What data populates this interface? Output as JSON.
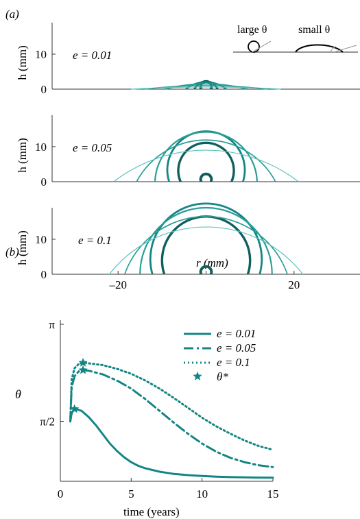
{
  "colors": {
    "teal_dark": "#0f5f5f",
    "teal": "#148585",
    "teal_mid": "#2a9d97",
    "teal_light": "#5cc4bf",
    "axis": "#333333",
    "inset_drop": "#000000",
    "inset_guide": "#999999"
  },
  "panel_a": {
    "label": "(a)",
    "inset": {
      "large_label": "large θ",
      "small_label": "small θ"
    }
  },
  "panel_b": {
    "label": "(b)"
  },
  "chart_data": [
    {
      "type": "line",
      "panel": "a-top",
      "ylabel": "h (mm)",
      "annotation": "e = 0.01",
      "ylim": [
        0,
        19
      ],
      "yticks": [
        0,
        10
      ],
      "xlim": [
        -35,
        35
      ],
      "series": [
        {
          "R": 1.1,
          "h": 2.2,
          "stroke": 4.0
        },
        {
          "R": 2.6,
          "h": 2.2,
          "stroke": 3.0
        },
        {
          "R": 4.6,
          "h": 2.0,
          "stroke": 2.5
        },
        {
          "R": 9.4,
          "h": 1.5,
          "stroke": 2.0
        },
        {
          "R": 14.0,
          "h": 1.0,
          "stroke": 1.6
        },
        {
          "R": 17.0,
          "h": 0.6,
          "stroke": 1.2
        }
      ]
    },
    {
      "type": "line",
      "panel": "a-middle",
      "ylabel": "h (mm)",
      "annotation": "e = 0.05",
      "ylim": [
        0,
        19
      ],
      "yticks": [
        0,
        10
      ],
      "xlim": [
        -35,
        35
      ],
      "series": [
        {
          "R": 1.1,
          "h": 2.2,
          "stroke": 4.0
        },
        {
          "R": 5.8,
          "h": 11.1,
          "stroke": 3.4
        },
        {
          "R": 8.4,
          "h": 14.4,
          "stroke": 2.8
        },
        {
          "R": 11.6,
          "h": 14.2,
          "stroke": 2.2
        },
        {
          "R": 15.8,
          "h": 11.9,
          "stroke": 1.7
        },
        {
          "R": 21.0,
          "h": 9.0,
          "stroke": 1.2
        }
      ]
    },
    {
      "type": "line",
      "panel": "a-bottom",
      "ylabel": "h (mm)",
      "annotation": "e = 0.1",
      "ylim": [
        0,
        19
      ],
      "yticks": [
        0,
        10
      ],
      "xlim": [
        -35,
        35
      ],
      "xticks": [
        -20,
        0,
        20
      ],
      "xticklabels": [
        "–20",
        "",
        "20"
      ],
      "xlabel": "r (mm)",
      "series": [
        {
          "R": 1.1,
          "h": 2.2,
          "stroke": 4.0
        },
        {
          "R": 9.5,
          "h": 16.5,
          "stroke": 3.4
        },
        {
          "R": 12.2,
          "h": 20.2,
          "stroke": 2.8
        },
        {
          "R": 15.0,
          "h": 19.0,
          "stroke": 2.2
        },
        {
          "R": 18.5,
          "h": 16.5,
          "stroke": 1.7
        },
        {
          "R": 22.0,
          "h": 13.5,
          "stroke": 1.2
        }
      ]
    },
    {
      "type": "line",
      "panel": "b",
      "xlabel": "time (years)",
      "ylabel": "θ",
      "xlim": [
        0,
        15
      ],
      "xticks": [
        0,
        5,
        10,
        15
      ],
      "ylim": [
        0.6,
        3.14159
      ],
      "yticks": [
        1.5708,
        3.14159
      ],
      "yticklabels": [
        "π/2",
        "π"
      ],
      "legend_position": "top-right",
      "series": [
        {
          "name": "e = 0.01",
          "dash": "solid",
          "x": [
            0.7,
            0.8,
            0.95,
            1.1,
            1.5,
            2.0,
            2.5,
            3.0,
            3.5,
            4.0,
            4.5,
            5.0,
            5.5,
            6.0,
            7.0,
            8.0,
            9.0,
            10.0,
            11.0,
            12.0,
            13.0,
            14.0,
            15.0
          ],
          "y": [
            1.57,
            1.7,
            1.76,
            1.77,
            1.74,
            1.64,
            1.51,
            1.36,
            1.21,
            1.09,
            0.99,
            0.91,
            0.85,
            0.81,
            0.755,
            0.72,
            0.7,
            0.685,
            0.675,
            0.668,
            0.663,
            0.66,
            0.658
          ]
        },
        {
          "name": "e = 0.05",
          "dash": "dashdot",
          "x": [
            0.7,
            0.8,
            1.0,
            1.3,
            1.6,
            2.0,
            3.0,
            4.0,
            5.0,
            6.0,
            7.0,
            8.0,
            9.0,
            10.0,
            11.0,
            12.0,
            13.0,
            14.0,
            15.0
          ],
          "y": [
            1.57,
            2.12,
            2.3,
            2.38,
            2.4,
            2.39,
            2.33,
            2.23,
            2.1,
            1.93,
            1.74,
            1.55,
            1.37,
            1.21,
            1.08,
            0.98,
            0.91,
            0.86,
            0.83
          ]
        },
        {
          "name": "e = 0.1",
          "dash": "dotted",
          "x": [
            0.7,
            0.8,
            1.0,
            1.3,
            1.6,
            2.0,
            3.0,
            4.0,
            5.0,
            6.0,
            7.0,
            8.0,
            9.0,
            10.0,
            11.0,
            12.0,
            13.0,
            14.0,
            15.0
          ],
          "y": [
            1.57,
            2.25,
            2.43,
            2.5,
            2.52,
            2.51,
            2.48,
            2.42,
            2.34,
            2.23,
            2.1,
            1.95,
            1.79,
            1.63,
            1.49,
            1.37,
            1.26,
            1.17,
            1.11
          ]
        }
      ],
      "markers": {
        "name": "θ*",
        "points": [
          {
            "x": 1.0,
            "y": 1.77
          },
          {
            "x": 1.6,
            "y": 2.4
          },
          {
            "x": 1.6,
            "y": 2.52
          }
        ]
      }
    }
  ]
}
